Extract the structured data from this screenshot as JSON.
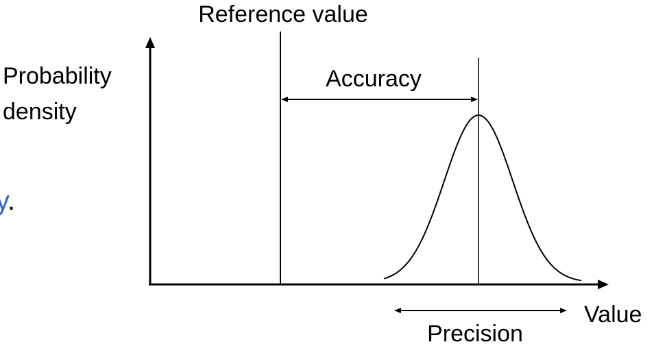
{
  "diagram": {
    "title": "Reference value",
    "y_axis_label_line1": "Probability",
    "y_axis_label_line2": "density",
    "x_axis_label": "Value",
    "accuracy_label": "Accuracy",
    "precision_label": "Precision"
  },
  "cropped_fragment": {
    "char": "y",
    "punct": ".",
    "link_color": "#3366cc"
  },
  "colors": {
    "stroke": "#000000",
    "background": "#ffffff"
  }
}
